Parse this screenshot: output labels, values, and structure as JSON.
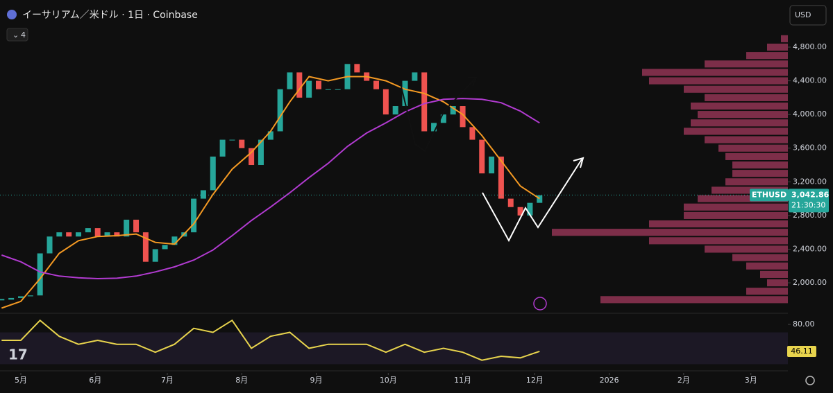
{
  "chart_data": [
    {
      "type": "line",
      "title": "イーサリアム／米ドル · 1日 · Coinbase",
      "currency": "USD",
      "indicator_count": "4",
      "symbol": "ETHUSD",
      "last_price": {
        "value": 3042.86,
        "label": "3,042.86"
      },
      "countdown": "21:30:30",
      "xlim": [
        -8.67,
        319.4
      ],
      "xticks": [
        {
          "value": 0,
          "label": "5月"
        },
        {
          "value": 31,
          "label": "6月"
        },
        {
          "value": 61,
          "label": "7月"
        },
        {
          "value": 92,
          "label": "8月"
        },
        {
          "value": 123,
          "label": "9月"
        },
        {
          "value": 153,
          "label": "10月"
        },
        {
          "value": 184,
          "label": "11月"
        },
        {
          "value": 214,
          "label": "12月"
        },
        {
          "value": 245,
          "label": "2026"
        },
        {
          "value": 276,
          "label": "2月"
        },
        {
          "value": 304,
          "label": "3月"
        }
      ],
      "ylim": [
        1638,
        5360
      ],
      "yticks": [
        {
          "value": 2000,
          "label": "2,000.00"
        },
        {
          "value": 2400,
          "label": "2,400.00"
        },
        {
          "value": 2800,
          "label": "2,800.00"
        },
        {
          "value": 3200,
          "label": "3,200.00"
        },
        {
          "value": 3600,
          "label": "3,600.00"
        },
        {
          "value": 4000,
          "label": "4,000.00"
        },
        {
          "value": 4400,
          "label": "4,400.00"
        },
        {
          "value": 4800,
          "label": "4,800.00"
        }
      ],
      "series": [
        {
          "style": "candles",
          "color": "#26a69a",
          "down_color": "#ef5350",
          "x": [
            -8,
            -4,
            0,
            4,
            8,
            12,
            16,
            20,
            24,
            28,
            32,
            36,
            40,
            44,
            48,
            52,
            56,
            60,
            64,
            68,
            72,
            76,
            80,
            84,
            88,
            92,
            96,
            100,
            104,
            108,
            112,
            116,
            120,
            124,
            128,
            132,
            136,
            140,
            144,
            148,
            152,
            156,
            160,
            164,
            168,
            172,
            176,
            180,
            184,
            188,
            192,
            196,
            200,
            204,
            208,
            212,
            216
          ],
          "values": [
            1800,
            1820,
            1840,
            1850,
            2350,
            2550,
            2600,
            2550,
            2600,
            2650,
            2550,
            2600,
            2550,
            2750,
            2600,
            2250,
            2400,
            2450,
            2550,
            2600,
            3000,
            3100,
            3500,
            3700,
            3700,
            3600,
            3400,
            3700,
            3800,
            4300,
            4500,
            4200,
            4400,
            4300,
            4300,
            4300,
            4600,
            4500,
            4400,
            4300,
            4000,
            4100,
            4400,
            4500,
            3800,
            3900,
            4000,
            4100,
            3850,
            3700,
            3300,
            3500,
            3000,
            2900,
            2800,
            2950,
            3040
          ]
        },
        {
          "style": "line",
          "color": "#f59a23",
          "x": [
            -8,
            0,
            8,
            16,
            24,
            32,
            40,
            48,
            56,
            64,
            72,
            80,
            88,
            96,
            104,
            112,
            120,
            128,
            136,
            144,
            152,
            160,
            168,
            176,
            184,
            192,
            200,
            208,
            216
          ],
          "values": [
            1700,
            1780,
            2050,
            2350,
            2500,
            2550,
            2560,
            2580,
            2480,
            2460,
            2700,
            3050,
            3350,
            3550,
            3800,
            4150,
            4450,
            4400,
            4450,
            4450,
            4400,
            4300,
            4250,
            4150,
            4000,
            3750,
            3450,
            3150,
            3000
          ]
        },
        {
          "style": "line",
          "color": "#b23bd1",
          "x": [
            -8,
            0,
            8,
            16,
            24,
            32,
            40,
            48,
            56,
            64,
            72,
            80,
            88,
            96,
            104,
            112,
            120,
            128,
            136,
            144,
            152,
            160,
            168,
            176,
            184,
            192,
            200,
            208,
            216
          ],
          "values": [
            2330,
            2250,
            2130,
            2080,
            2060,
            2050,
            2055,
            2080,
            2130,
            2190,
            2270,
            2390,
            2560,
            2740,
            2900,
            3070,
            3250,
            3420,
            3620,
            3780,
            3900,
            4030,
            4130,
            4180,
            4190,
            4180,
            4140,
            4040,
            3900
          ]
        }
      ],
      "volume_profile": {
        "color": "#d9487a",
        "prices": [
          1800,
          1900,
          2000,
          2100,
          2200,
          2300,
          2400,
          2500,
          2600,
          2700,
          2800,
          2900,
          3000,
          3100,
          3200,
          3300,
          3400,
          3500,
          3600,
          3700,
          3800,
          3900,
          4000,
          4100,
          4200,
          4300,
          4400,
          4500,
          4600,
          4700,
          4800,
          4900
        ],
        "values": [
          270,
          60,
          30,
          40,
          60,
          80,
          120,
          200,
          340,
          200,
          150,
          150,
          130,
          110,
          90,
          80,
          80,
          90,
          100,
          120,
          150,
          140,
          130,
          140,
          120,
          150,
          200,
          210,
          120,
          60,
          30,
          10
        ]
      }
    },
    {
      "type": "line",
      "ylim": [
        21.7,
        91.3
      ],
      "yticks": [
        {
          "value": 80,
          "label": "80.00"
        }
      ],
      "band": [
        30,
        70
      ],
      "series": [
        {
          "color": "#e8d44d",
          "x": [
            -8,
            0,
            8,
            16,
            24,
            32,
            40,
            48,
            56,
            64,
            72,
            80,
            88,
            96,
            104,
            112,
            120,
            128,
            136,
            144,
            152,
            160,
            168,
            176,
            184,
            192,
            200,
            208,
            216
          ],
          "values": [
            60,
            60,
            85,
            65,
            55,
            60,
            55,
            55,
            45,
            55,
            75,
            70,
            85,
            50,
            65,
            70,
            50,
            55,
            55,
            55,
            45,
            55,
            45,
            50,
            45,
            35,
            40,
            38,
            46.11
          ]
        }
      ]
    }
  ]
}
